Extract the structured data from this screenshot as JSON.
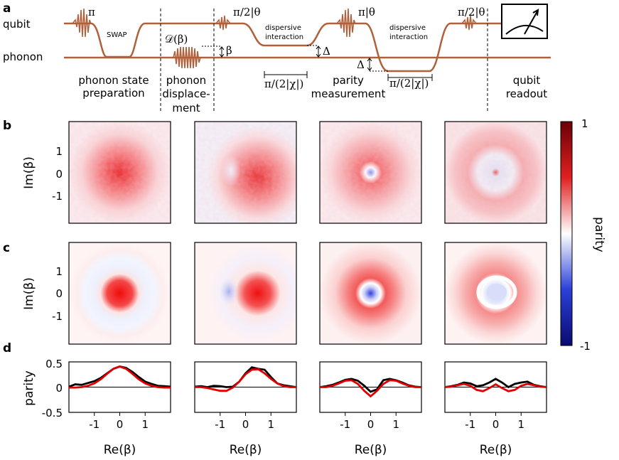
{
  "panel_letters": {
    "a": "a",
    "b": "b",
    "c": "c",
    "d": "d"
  },
  "schematic": {
    "qubit_label": "qubit",
    "phonon_label": "phonon",
    "pulse_pi": "π",
    "swap": "SWAP",
    "displacement_op": "𝒟(β)",
    "beta_mark": "β",
    "pulse_pi2_theta_1": "π/2|θ",
    "dispersive_1_l1": "dispersive",
    "dispersive_1_l2": "interaction",
    "delta_mark_1": "Δ",
    "pulse_pi_theta": "π|θ",
    "dispersive_2_l1": "dispersive",
    "dispersive_2_l2": "interaction",
    "delta_mark_2": "Δ",
    "pulse_pi2_theta_2": "π/2|θ",
    "wait_1": "π/(2|χ|)",
    "wait_2": "π/(2|χ|)",
    "stage_1_l1": "phonon state",
    "stage_1_l2": "preparation",
    "stage_2_l1": "phonon",
    "stage_2_l2": "displace-",
    "stage_2_l3": "ment",
    "stage_3_l1": "parity",
    "stage_3_l2": "measurement",
    "stage_4_l1": "qubit",
    "stage_4_l2": "readout"
  },
  "colorbar": {
    "label": "parity",
    "max_label": "1",
    "min_label": "-1",
    "colors": [
      "#0a0a70",
      "#2a40d8",
      "#ffffff",
      "#e02020",
      "#6a0008"
    ]
  },
  "axes": {
    "im_label": "Im(β)",
    "re_label": "Re(β)",
    "parity_label": "parity",
    "map_yticks": [
      "1",
      "0",
      "-1"
    ],
    "cut_yticks": [
      "0.5",
      "0",
      "-0.5"
    ],
    "cut_xticks": [
      "-1",
      "0",
      "1"
    ]
  },
  "colors": {
    "experiment": "#000000",
    "theory": "#e00000",
    "pulse": "#b0603a"
  },
  "chart_data": [
    {
      "type": "line",
      "panel": "d-1",
      "xlabel": "Re(β)",
      "ylabel": "parity",
      "ylim": [
        -0.55,
        0.55
      ],
      "xlim": [
        -2.0,
        2.0
      ],
      "series": [
        {
          "x": [
            -2,
            -1.75,
            -1.5,
            -1.25,
            -1,
            -0.75,
            -0.5,
            -0.25,
            0,
            0.25,
            0.5,
            0.75,
            1,
            1.25,
            1.5,
            1.75,
            2
          ],
          "values": [
            0.01,
            0.06,
            0.05,
            0.09,
            0.13,
            0.2,
            0.3,
            0.4,
            0.45,
            0.42,
            0.33,
            0.22,
            0.12,
            0.07,
            0.03,
            0.02,
            0.01
          ]
        },
        {
          "x": [
            -2,
            -1.75,
            -1.5,
            -1.25,
            -1,
            -0.75,
            -0.5,
            -0.25,
            0,
            0.25,
            0.5,
            0.75,
            1,
            1.25,
            1.5,
            1.75,
            2
          ],
          "values": [
            -0.01,
            -0.01,
            0.0,
            0.03,
            0.08,
            0.17,
            0.29,
            0.4,
            0.45,
            0.4,
            0.29,
            0.17,
            0.08,
            0.03,
            0.0,
            -0.01,
            -0.01
          ]
        }
      ]
    },
    {
      "type": "line",
      "panel": "d-2",
      "xlabel": "Re(β)",
      "ylabel": "",
      "ylim": [
        -0.55,
        0.55
      ],
      "xlim": [
        -2.0,
        2.0
      ],
      "series": [
        {
          "x": [
            -2,
            -1.75,
            -1.5,
            -1.25,
            -1,
            -0.75,
            -0.5,
            -0.25,
            0,
            0.25,
            0.5,
            0.75,
            1,
            1.25,
            1.5,
            1.75,
            2
          ],
          "values": [
            0.01,
            0.02,
            0.0,
            0.03,
            0.02,
            0.0,
            0.01,
            0.12,
            0.3,
            0.43,
            0.4,
            0.38,
            0.22,
            0.08,
            0.04,
            0.02,
            0.0
          ]
        },
        {
          "x": [
            -2,
            -1.75,
            -1.5,
            -1.25,
            -1,
            -0.75,
            -0.5,
            -0.25,
            0,
            0.25,
            0.5,
            0.75,
            1,
            1.25,
            1.5,
            1.75,
            2
          ],
          "values": [
            0.0,
            0.0,
            -0.02,
            -0.05,
            -0.08,
            -0.08,
            -0.01,
            0.12,
            0.28,
            0.38,
            0.39,
            0.3,
            0.18,
            0.08,
            0.02,
            0.0,
            0.0
          ]
        }
      ]
    },
    {
      "type": "line",
      "panel": "d-3",
      "xlabel": "Re(β)",
      "ylabel": "",
      "ylim": [
        -0.55,
        0.55
      ],
      "xlim": [
        -2.0,
        2.0
      ],
      "series": [
        {
          "x": [
            -2,
            -1.75,
            -1.5,
            -1.25,
            -1,
            -0.75,
            -0.5,
            -0.25,
            0,
            0.25,
            0.5,
            0.75,
            1,
            1.25,
            1.5,
            1.75,
            2
          ],
          "values": [
            0.0,
            0.02,
            0.05,
            0.1,
            0.16,
            0.18,
            0.14,
            0.03,
            -0.1,
            -0.05,
            0.15,
            0.18,
            0.15,
            0.1,
            0.04,
            0.01,
            0.0
          ]
        },
        {
          "x": [
            -2,
            -1.75,
            -1.5,
            -1.25,
            -1,
            -0.75,
            -0.5,
            -0.25,
            0,
            0.25,
            0.5,
            0.75,
            1,
            1.25,
            1.5,
            1.75,
            2
          ],
          "values": [
            0.0,
            0.0,
            0.03,
            0.08,
            0.14,
            0.15,
            0.07,
            -0.08,
            -0.2,
            -0.08,
            0.07,
            0.15,
            0.14,
            0.08,
            0.03,
            0.0,
            0.0
          ]
        }
      ]
    },
    {
      "type": "line",
      "panel": "d-4",
      "xlabel": "Re(β)",
      "ylabel": "",
      "ylim": [
        -0.55,
        0.55
      ],
      "xlim": [
        -2.0,
        2.0
      ],
      "series": [
        {
          "x": [
            -2,
            -1.75,
            -1.5,
            -1.25,
            -1,
            -0.75,
            -0.5,
            -0.25,
            0,
            0.25,
            0.5,
            0.75,
            1,
            1.25,
            1.5,
            1.75,
            2
          ],
          "values": [
            0.0,
            0.02,
            0.05,
            0.1,
            0.08,
            0.02,
            0.04,
            0.1,
            0.18,
            0.1,
            0.0,
            0.07,
            0.1,
            0.12,
            0.05,
            0.02,
            0.0
          ]
        },
        {
          "x": [
            -2,
            -1.75,
            -1.5,
            -1.25,
            -1,
            -0.75,
            -0.5,
            -0.25,
            0,
            0.25,
            0.5,
            0.75,
            1,
            1.25,
            1.5,
            1.75,
            2
          ],
          "values": [
            0.0,
            0.01,
            0.04,
            0.07,
            0.03,
            -0.06,
            -0.09,
            -0.02,
            0.06,
            -0.02,
            -0.09,
            -0.06,
            0.03,
            0.07,
            0.04,
            0.01,
            0.0
          ]
        }
      ]
    }
  ]
}
